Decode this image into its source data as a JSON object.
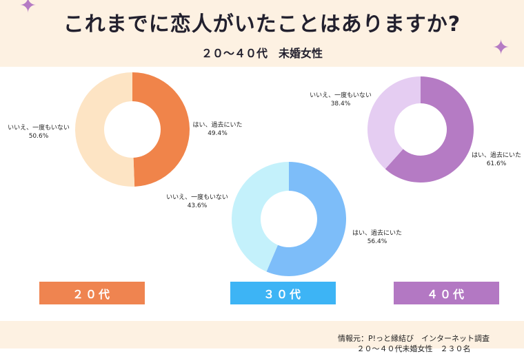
{
  "title": "これまでに恋人がいたことはありますか?",
  "subtitle": "２０～４０代　未婚女性",
  "source": {
    "line1": "情報元：P!っと縁結び　インターネット調査",
    "line2": "２０～４０代未婚女性　２３０名"
  },
  "chart_data": [
    {
      "type": "pie",
      "donut": true,
      "group": "２０代",
      "slices": [
        {
          "label": "はい、過去にいた",
          "value": 49.4,
          "value_label": "49.4%",
          "color": "#f0844a"
        },
        {
          "label": "いいえ、一度もいない",
          "value": 50.6,
          "value_label": "50.6%",
          "color": "#fde4c4"
        }
      ]
    },
    {
      "type": "pie",
      "donut": true,
      "group": "３０代",
      "slices": [
        {
          "label": "はい、過去にいた",
          "value": 56.4,
          "value_label": "56.4%",
          "color": "#7dbdf9"
        },
        {
          "label": "いいえ、一度もいない",
          "value": 43.6,
          "value_label": "43.6%",
          "color": "#c4f1fb"
        }
      ]
    },
    {
      "type": "pie",
      "donut": true,
      "group": "４０代",
      "slices": [
        {
          "label": "はい、過去にいた",
          "value": 61.6,
          "value_label": "61.6%",
          "color": "#b57bc4"
        },
        {
          "label": "いいえ、一度もいない",
          "value": 38.4,
          "value_label": "38.4%",
          "color": "#e5cdf2"
        }
      ]
    }
  ],
  "groups": [
    {
      "label": "２０代",
      "color": "#ef8450"
    },
    {
      "label": "３０代",
      "color": "#3db4f5"
    },
    {
      "label": "４０代",
      "color": "#b378c3"
    }
  ],
  "decorations": {
    "star_color": "#b57bc4",
    "star_icon": "sparkle-icon"
  }
}
